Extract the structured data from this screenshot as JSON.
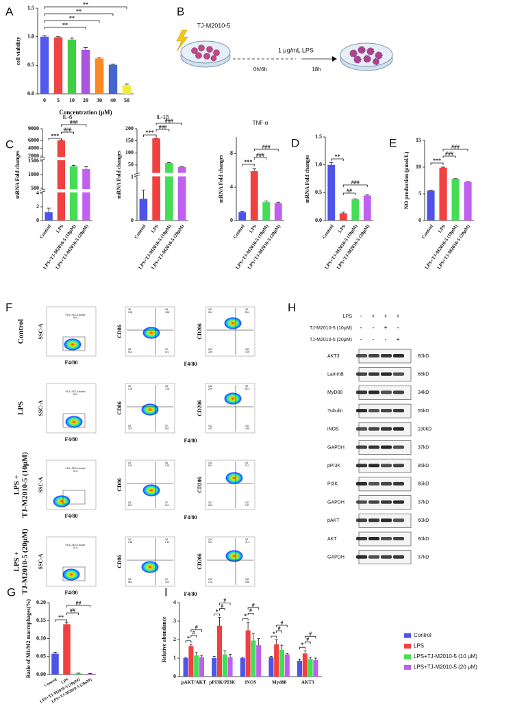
{
  "chart_data": [
    {
      "type": "bar",
      "panel": "A",
      "categories": [
        "0",
        "5",
        "10",
        "20",
        "30",
        "40",
        "50"
      ],
      "values": [
        1.0,
        0.99,
        0.95,
        0.77,
        0.62,
        0.51,
        0.15
      ],
      "errors": [
        0.02,
        0.01,
        0.03,
        0.04,
        0.01,
        0.01,
        0.02
      ],
      "colors": [
        "#5257ee",
        "#ee4444",
        "#44cc44",
        "#aa55dd",
        "#ff8822",
        "#4466cc",
        "#eeee33"
      ],
      "ylim": [
        0,
        1.5
      ],
      "yticks": [
        {
          "value": 0,
          "label": "0.0"
        },
        0.5,
        {
          "value": 1,
          "label": "1.0"
        },
        1.5
      ],
      "ylabel": "cell viability",
      "xlabel": "Concentration (μM)",
      "annotations": [
        "**",
        "**",
        "**",
        "**"
      ]
    },
    {
      "type": "bar",
      "panel": "C",
      "title": "IL-6",
      "ylabel": "mRNA Fold changes",
      "categories": [
        "Control",
        "LPS",
        "LPS+TJ-M2010-5 (10μM)",
        "LPS+TJ-M2010-5 (20μM)"
      ],
      "values": [
        1.2,
        6000,
        1300,
        1200
      ],
      "errors": [
        0.6,
        150,
        40,
        90
      ],
      "colors": [
        "#4d54e8",
        "#f04040",
        "#44dd55",
        "#c060f0"
      ],
      "ysegments": [
        [
          0,
          4
        ],
        [
          500,
          1500
        ],
        [
          2000,
          9000
        ]
      ],
      "yticks": [
        0,
        2,
        4,
        500,
        1000,
        1500,
        2000,
        4000,
        6000,
        9000
      ],
      "annotations": [
        "***",
        "###",
        "###"
      ]
    },
    {
      "type": "bar",
      "title": "IL-1β",
      "ylabel": "mRNA Fold changes",
      "categories": [
        "Control",
        "LPS",
        "LPS+TJ-M2010-5 (10μM)",
        "LPS+TJ-M2010-5 (20μM)"
      ],
      "values": [
        0.5,
        160,
        58,
        42
      ],
      "errors": [
        0.2,
        2,
        2,
        1.5
      ],
      "colors": [
        "#4d54e8",
        "#f04040",
        "#44dd55",
        "#c060f0"
      ],
      "ysegments": [
        [
          0,
          1
        ],
        [
          20,
          200
        ]
      ],
      "yticks": [
        0,
        1,
        50,
        100,
        150,
        200
      ],
      "annotations": [
        "***",
        "###",
        "###"
      ]
    },
    {
      "type": "bar",
      "title": "TNF-α",
      "ylabel": "mRNA Fold changes",
      "categories": [
        "Control",
        "LPS",
        "LPS+TJ-M2010-5 (10μM)",
        "LPS+TJ-M2010-5 (20μM)"
      ],
      "values": [
        1.0,
        5.9,
        2.2,
        2.1
      ],
      "errors": [
        0.1,
        0.3,
        0.15,
        0.1
      ],
      "colors": [
        "#4d54e8",
        "#f04040",
        "#44dd55",
        "#c060f0"
      ],
      "ylim": [
        0,
        10
      ],
      "yticks": [
        0,
        4,
        8
      ],
      "annotations": [
        "***",
        "###",
        "###"
      ]
    },
    {
      "type": "bar",
      "panel": "D",
      "ylabel": "mRNA Fold changes",
      "categories": [
        "Control",
        "LPS",
        "LPS+TJ-M2010-5 (10μM)",
        "LPS+TJ-M2010-5 (20μM)"
      ],
      "values": [
        1.0,
        0.13,
        0.38,
        0.45
      ],
      "errors": [
        0.04,
        0.02,
        0.01,
        0.01
      ],
      "colors": [
        "#4d54e8",
        "#f04040",
        "#44dd55",
        "#c060f0"
      ],
      "ylim": [
        0,
        1.5
      ],
      "yticks": [
        {
          "value": 0,
          "label": "0.0"
        },
        0.5,
        {
          "value": 1,
          "label": "1.0"
        },
        1.5
      ],
      "annotations": [
        "**",
        "##",
        "###"
      ]
    },
    {
      "type": "bar",
      "panel": "E",
      "ylabel": "NO production (μmol/L)",
      "categories": [
        "Control",
        "LPS",
        "LPS+TJ-M2010-5 (10μM)",
        "LPS+TJ-M2010-5 (20μM)"
      ],
      "values": [
        5.6,
        9.9,
        7.8,
        7.2
      ],
      "errors": [
        0.05,
        0.1,
        0.05,
        0.05
      ],
      "colors": [
        "#4d54e8",
        "#f04040",
        "#44dd55",
        "#c060f0"
      ],
      "ylim": [
        0,
        15
      ],
      "yticks": [
        0,
        5,
        10,
        15
      ],
      "annotations": [
        "***",
        "###",
        "###"
      ]
    },
    {
      "type": "bar",
      "panel": "G",
      "ylabel": "Ratio of M1/M2 macrophages(%)",
      "categories": [
        "Control",
        "LPS",
        "LPS+TJ-M2010-5 (10μM)",
        "LPS+TJ-M2010-5 (20μM)"
      ],
      "values": [
        0.058,
        0.14,
        0.003,
        0.002
      ],
      "errors": [
        0.004,
        0.006,
        0.001,
        0.001
      ],
      "colors": [
        "#4d54e8",
        "#f04040",
        "#44dd55",
        "#c060f0"
      ],
      "ylim": [
        0,
        0.2
      ],
      "yticks": [
        {
          "value": 0,
          "label": "0.00"
        },
        0.05,
        {
          "value": 0.1,
          "label": "0.10"
        },
        0.15,
        {
          "value": 0.2,
          "label": "0.20"
        }
      ],
      "annotations": [
        "**",
        "##",
        "##"
      ]
    },
    {
      "type": "grouped_bar",
      "panel": "I",
      "ylabel": "Relative abundance",
      "categories": [
        "pAKT/AKT",
        "pPI3K/PI3K",
        "iNOS",
        "Myd88",
        "AKT3"
      ],
      "ylim": [
        0,
        4
      ],
      "yticks": [
        0,
        1,
        2,
        3,
        4
      ],
      "series": [
        {
          "name": "Control",
          "color": "#4d54e8",
          "values": [
            1.0,
            1.0,
            1.0,
            1.05,
            0.85
          ],
          "errors": [
            0.05,
            0.1,
            0.05,
            0.05,
            0.1
          ]
        },
        {
          "name": "LPS",
          "color": "#f04040",
          "values": [
            1.65,
            2.75,
            2.5,
            1.75,
            1.25
          ],
          "errors": [
            0.1,
            0.45,
            0.45,
            0.25,
            0.15
          ]
        },
        {
          "name": "LPS+TJ-M2010-5 (10 μM)",
          "color": "#44dd55",
          "values": [
            1.15,
            1.2,
            1.95,
            1.45,
            0.95
          ],
          "errors": [
            0.15,
            0.2,
            0.4,
            0.25,
            0.1
          ]
        },
        {
          "name": "LPS+TJ-M2010-5 (20 μM)",
          "color": "#c060f0",
          "values": [
            1.05,
            1.05,
            1.7,
            1.2,
            0.9
          ],
          "errors": [
            0.1,
            0.15,
            0.35,
            0.05,
            0.1
          ]
        }
      ],
      "annotations": [
        [
          "*",
          "#",
          "#"
        ],
        [
          "*",
          "#",
          "#"
        ],
        [
          "*",
          "#",
          "#"
        ],
        [
          "*",
          "#",
          "#"
        ],
        [
          "*",
          "#",
          "#"
        ]
      ]
    }
  ],
  "schematic": {
    "panel": "B",
    "drug": "TJ-M2010-5",
    "time": "0h/6h",
    "stimulus": "1 μg/mL LPS",
    "duration": "18h"
  },
  "flow": {
    "panel": "F",
    "gate_title": "P6-A, SSC-A subset",
    "ssc_label": "SSC-A",
    "f480_label": "F4/80",
    "cd86_label": "CD86",
    "cd206_label": "CD206",
    "cd86_quadrants": [
      "Q5",
      "Q6",
      "Q8",
      "Q7"
    ],
    "cd206_quadrants": [
      "Q10",
      "Q9",
      "Q12",
      "Q11"
    ],
    "rows": [
      {
        "label": [
          "Control"
        ],
        "gate_value": 99.8,
        "cd86": [
          0.08,
          4.68,
          53.3,
          42.1
        ],
        "cd206": [
          35.3,
          55.4,
          2.69,
          3.39
        ]
      },
      {
        "label": [
          "LPS"
        ],
        "gate_value": 99.6,
        "cd86": [
          1.25,
          7.28,
          32.9,
          59.2
        ],
        "cd206": [
          29.6,
          63.4,
          4.67,
          4.69
        ]
      },
      {
        "label": [
          "LPS +",
          "TJ-M2010-5 (10μM)"
        ],
        "gate_value": 91.6,
        "cd86": [
          0.14,
          0.26,
          69.2,
          30.4
        ],
        "cd206": [
          58.3,
          31.3,
          8.04,
          2.37
        ]
      },
      {
        "label": [
          "LPS +",
          "TJ-M2010-5 (20μM)"
        ],
        "gate_value": 91.8,
        "cd86": [
          1.88,
          1.19,
          58.4,
          40.4
        ],
        "cd206": [
          39.3,
          41.2,
          1.34,
          0.55
        ]
      }
    ]
  },
  "western": {
    "panel": "H",
    "conditions": [
      {
        "label": "LPS",
        "signs": [
          "-",
          "+",
          "+",
          "+"
        ]
      },
      {
        "label": "TJ-M2010-5 (10μM)",
        "signs": [
          "-",
          "-",
          "+",
          "-"
        ]
      },
      {
        "label": "TJ-M2010-5 (20μM)",
        "signs": [
          "-",
          "-",
          "-",
          "+"
        ]
      }
    ],
    "bands": [
      {
        "name": "AKT3",
        "size": "60kD"
      },
      {
        "name": "LaminB",
        "size": "66kD"
      },
      {
        "name": "MyD88",
        "size": "34kD"
      },
      {
        "name": "Tubulin",
        "size": "55kD"
      },
      {
        "name": "iNOS",
        "size": "130kD"
      },
      {
        "name": "GAPDH",
        "size": "37kD"
      },
      {
        "name": "pPI3K",
        "size": "85kD"
      },
      {
        "name": "PI3K",
        "size": "85kD"
      },
      {
        "name": "GAPDH",
        "size": "37kD"
      },
      {
        "name": "pAKT",
        "size": "60kD"
      },
      {
        "name": "AKT",
        "size": "60kD"
      },
      {
        "name": "GAPDH",
        "size": "37kD"
      }
    ]
  }
}
